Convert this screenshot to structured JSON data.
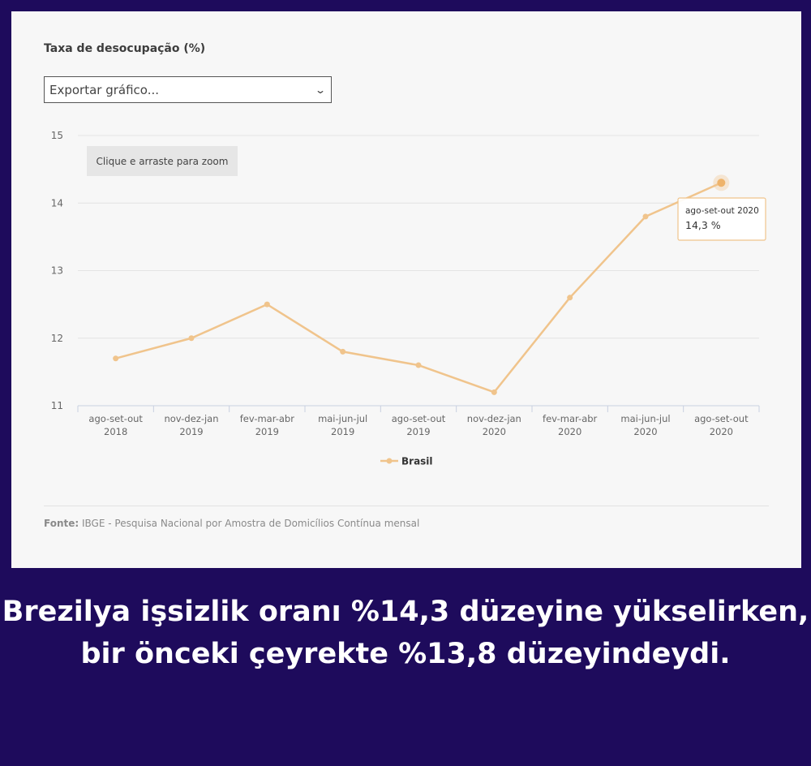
{
  "chart_title": "Taxa de desocupação (%)",
  "export": {
    "selected": "Exportar gráfico..."
  },
  "zoom_hint": "Clique e arraste para zoom",
  "source": {
    "label": "Fonte:",
    "text": "IBGE - Pesquisa Nacional por Amostra de Domicílios Contínua mensal"
  },
  "caption": "Brezilya işsizlik oranı %14,3 düzeyine yükselirken, bir önceki çeyrekte %13,8 düzeyindeydi.",
  "tooltip": {
    "title": "ago-set-out 2020",
    "value": "14,3 %"
  },
  "colors": {
    "line": "#f0c48c",
    "background": "#1e0b5c",
    "panel": "#f7f7f7"
  },
  "chart_data": {
    "type": "line",
    "categories": [
      [
        "ago-set-out",
        "2018"
      ],
      [
        "nov-dez-jan",
        "2019"
      ],
      [
        "fev-mar-abr",
        "2019"
      ],
      [
        "mai-jun-jul",
        "2019"
      ],
      [
        "ago-set-out",
        "2019"
      ],
      [
        "nov-dez-jan",
        "2020"
      ],
      [
        "fev-mar-abr",
        "2020"
      ],
      [
        "mai-jun-jul",
        "2020"
      ],
      [
        "ago-set-out",
        "2020"
      ]
    ],
    "series": [
      {
        "name": "Brasil",
        "values": [
          11.7,
          12.0,
          12.5,
          11.8,
          11.6,
          11.2,
          12.6,
          13.8,
          14.3
        ]
      }
    ],
    "ylim": [
      11,
      15
    ],
    "yticks": [
      11,
      12,
      13,
      14,
      15
    ],
    "grid": true,
    "legend": "bottom-center"
  }
}
